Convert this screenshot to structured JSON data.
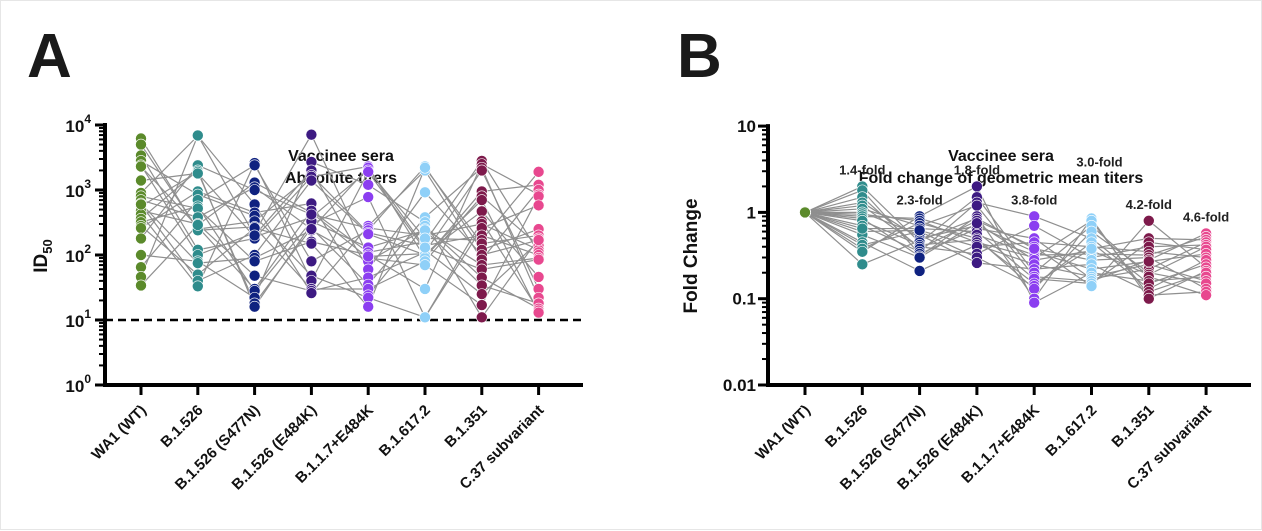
{
  "chart_data": [
    {
      "type": "scatter",
      "panel": "A",
      "title": "Vaccinee sera",
      "subtitle": "Absolute titers",
      "xlabel": "",
      "ylabel": "ID50",
      "ylabel_main": "ID",
      "ylabel_sub": "50",
      "yscale": "log",
      "ylim": [
        1,
        10000
      ],
      "yticks": [
        {
          "base": "10",
          "exp": "0",
          "v": 1
        },
        {
          "base": "10",
          "exp": "1",
          "v": 10
        },
        {
          "base": "10",
          "exp": "2",
          "v": 100
        },
        {
          "base": "10",
          "exp": "3",
          "v": 1000
        },
        {
          "base": "10",
          "exp": "4",
          "v": 10000
        }
      ],
      "threshold": 10,
      "categories": [
        "WA1 (WT)",
        "B.1.526",
        "B.1.526 (S477N)",
        "B.1.526 (E484K)",
        "B.1.1.7+E484K",
        "B.1.617.2",
        "B.1.351",
        "C.37 subvariant"
      ],
      "colors": [
        "#5b8a2b",
        "#2f8c8c",
        "#0f2280",
        "#3d1a82",
        "#8b3ef0",
        "#8fd0f8",
        "#7d1a4b",
        "#e8488f"
      ],
      "series": [
        {
          "name": "WA1 (WT)",
          "values": [
            6200,
            5000,
            3400,
            2800,
            2400,
            2300,
            1400,
            900,
            800,
            700,
            620,
            560,
            480,
            420,
            360,
            320,
            280,
            260,
            180,
            100,
            65,
            46,
            34,
            600
          ]
        },
        {
          "name": "B.1.526",
          "values": [
            6800,
            6900,
            2400,
            2000,
            1900,
            1800,
            950,
            850,
            700,
            560,
            520,
            380,
            300,
            270,
            250,
            240,
            120,
            100,
            80,
            75,
            50,
            40,
            33,
            290
          ]
        },
        {
          "name": "B.1.526 (S477N)",
          "values": [
            2600,
            2400,
            1300,
            1100,
            1000,
            600,
            450,
            400,
            330,
            270,
            220,
            190,
            180,
            100,
            90,
            80,
            48,
            30,
            28,
            22,
            18,
            16,
            260,
            200
          ]
        },
        {
          "name": "B.1.526 (E484K)",
          "values": [
            7100,
            2700,
            2000,
            1700,
            1600,
            1400,
            620,
            450,
            380,
            300,
            260,
            240,
            160,
            150,
            80,
            48,
            40,
            30,
            28,
            26,
            330,
            250,
            480,
            420
          ]
        },
        {
          "name": "B.1.1.7+E484K",
          "values": [
            2300,
            2200,
            2000,
            1200,
            780,
            280,
            260,
            240,
            220,
            130,
            110,
            100,
            90,
            80,
            60,
            45,
            35,
            30,
            24,
            22,
            16,
            95,
            210,
            1900
          ]
        },
        {
          "name": "B.1.617.2",
          "values": [
            2300,
            2000,
            2200,
            920,
            380,
            320,
            280,
            250,
            200,
            160,
            140,
            120,
            110,
            105,
            100,
            90,
            80,
            70,
            30,
            11,
            11,
            240,
            180,
            130
          ]
        },
        {
          "name": "B.1.351",
          "values": [
            2800,
            2500,
            2200,
            2000,
            950,
            800,
            700,
            470,
            330,
            300,
            260,
            200,
            170,
            150,
            120,
            100,
            85,
            70,
            60,
            45,
            34,
            25,
            17,
            11
          ]
        },
        {
          "name": "C.37 subvariant",
          "values": [
            1900,
            1200,
            1000,
            850,
            800,
            580,
            250,
            200,
            180,
            160,
            140,
            120,
            110,
            100,
            90,
            85,
            46,
            30,
            22,
            18,
            15,
            14,
            13,
            170
          ]
        }
      ]
    },
    {
      "type": "scatter",
      "panel": "B",
      "title": "Vaccinee sera",
      "subtitle": "Fold change of geometric mean titers",
      "xlabel": "",
      "ylabel": "Fold Change",
      "yscale": "log",
      "ylim": [
        0.01,
        10
      ],
      "yticks": [
        {
          "label": "0.01",
          "v": 0.01
        },
        {
          "label": "0.1",
          "v": 0.1
        },
        {
          "label": "1",
          "v": 1
        },
        {
          "label": "10",
          "v": 10
        }
      ],
      "categories": [
        "WA1 (WT)",
        "B.1.526",
        "B.1.526 (S477N)",
        "B.1.526 (E484K)",
        "B.1.1.7+E484K",
        "B.1.617.2",
        "B.1.351",
        "C.37 subvariant"
      ],
      "colors": [
        "#5b8a2b",
        "#2f8c8c",
        "#0f2280",
        "#3d1a82",
        "#8b3ef0",
        "#8fd0f8",
        "#7d1a4b",
        "#e8488f"
      ],
      "annotations": [
        "",
        "1.4-fold",
        "2.3-fold",
        "1.8-fold",
        "3.8-fold",
        "3.0-fold",
        "4.2-fold",
        "4.6-fold"
      ],
      "series": [
        {
          "name": "WA1 (WT)",
          "values": [
            1,
            1,
            1,
            1,
            1,
            1,
            1,
            1,
            1,
            1,
            1,
            1,
            1,
            1,
            1,
            1,
            1,
            1,
            1,
            1
          ]
        },
        {
          "name": "B.1.526",
          "values": [
            2.0,
            1.8,
            1.5,
            1.3,
            1.2,
            1.1,
            1.0,
            0.95,
            0.9,
            0.85,
            0.8,
            0.7,
            0.6,
            0.55,
            0.45,
            0.42,
            0.38,
            0.35,
            0.25,
            0.65
          ]
        },
        {
          "name": "B.1.526 (S477N)",
          "values": [
            0.9,
            0.85,
            0.8,
            0.75,
            0.7,
            0.65,
            0.6,
            0.55,
            0.5,
            0.47,
            0.45,
            0.42,
            0.4,
            0.38,
            0.35,
            0.33,
            0.31,
            0.3,
            0.21,
            0.62
          ]
        },
        {
          "name": "B.1.526 (E484K)",
          "values": [
            2.0,
            1.5,
            1.3,
            1.2,
            0.9,
            0.85,
            0.8,
            0.7,
            0.65,
            0.6,
            0.55,
            0.5,
            0.48,
            0.45,
            0.42,
            0.4,
            0.33,
            0.3,
            0.26,
            0.75
          ]
        },
        {
          "name": "B.1.1.7+E484K",
          "values": [
            0.9,
            0.7,
            0.5,
            0.45,
            0.4,
            0.35,
            0.32,
            0.3,
            0.28,
            0.25,
            0.22,
            0.2,
            0.18,
            0.17,
            0.15,
            0.14,
            0.13,
            0.1,
            0.09,
            0.38
          ]
        },
        {
          "name": "B.1.617.2",
          "values": [
            0.85,
            0.8,
            0.7,
            0.6,
            0.5,
            0.45,
            0.4,
            0.36,
            0.33,
            0.3,
            0.28,
            0.25,
            0.22,
            0.2,
            0.18,
            0.17,
            0.16,
            0.15,
            0.14,
            0.38
          ]
        },
        {
          "name": "B.1.351",
          "values": [
            0.8,
            0.5,
            0.45,
            0.4,
            0.35,
            0.32,
            0.3,
            0.28,
            0.25,
            0.22,
            0.2,
            0.19,
            0.18,
            0.16,
            0.15,
            0.13,
            0.12,
            0.11,
            0.1,
            0.27
          ]
        },
        {
          "name": "C.37 subvariant",
          "values": [
            0.57,
            0.52,
            0.48,
            0.45,
            0.42,
            0.4,
            0.37,
            0.33,
            0.3,
            0.28,
            0.25,
            0.23,
            0.21,
            0.2,
            0.18,
            0.16,
            0.15,
            0.13,
            0.12,
            0.11
          ]
        }
      ]
    }
  ],
  "panels": {
    "a_letter": "A",
    "b_letter": "B"
  }
}
